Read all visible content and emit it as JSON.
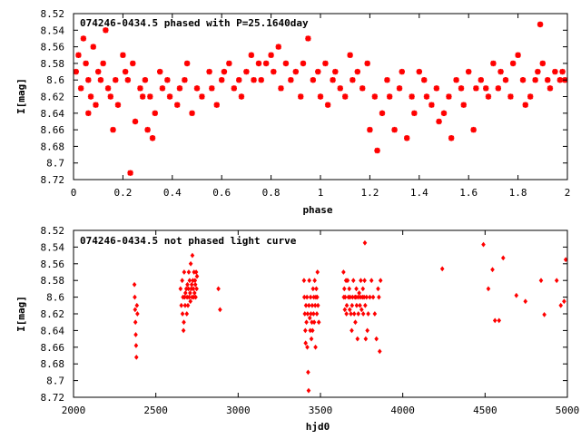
{
  "chart_data": [
    {
      "type": "scatter",
      "title": "074246-0434.5 phased with P=25.1640day",
      "xlabel": "phase",
      "ylabel": "I[mag]",
      "xlim": [
        0,
        2
      ],
      "ylim": [
        8.72,
        8.52
      ],
      "y_inverted": true,
      "marker": "star",
      "color": "#ff0000",
      "xticks": [
        "0",
        "0.2",
        "0.4",
        "0.6",
        "0.8",
        "1",
        "1.2",
        "1.4",
        "1.6",
        "1.8",
        "2"
      ],
      "yticks": [
        "8.52",
        "8.54",
        "8.56",
        "8.58",
        "8.6",
        "8.62",
        "8.64",
        "8.66",
        "8.68",
        "8.7",
        "8.72"
      ],
      "points": [
        [
          0.01,
          8.59
        ],
        [
          0.02,
          8.57
        ],
        [
          0.03,
          8.61
        ],
        [
          0.04,
          8.55
        ],
        [
          0.05,
          8.58
        ],
        [
          0.06,
          8.6
        ],
        [
          0.06,
          8.64
        ],
        [
          0.07,
          8.62
        ],
        [
          0.08,
          8.56
        ],
        [
          0.09,
          8.63
        ],
        [
          0.1,
          8.59
        ],
        [
          0.11,
          8.6
        ],
        [
          0.12,
          8.58
        ],
        [
          0.13,
          8.54
        ],
        [
          0.14,
          8.61
        ],
        [
          0.15,
          8.62
        ],
        [
          0.16,
          8.66
        ],
        [
          0.17,
          8.6
        ],
        [
          0.18,
          8.63
        ],
        [
          0.2,
          8.57
        ],
        [
          0.21,
          8.59
        ],
        [
          0.22,
          8.6
        ],
        [
          0.23,
          8.712
        ],
        [
          0.24,
          8.58
        ],
        [
          0.25,
          8.65
        ],
        [
          0.27,
          8.61
        ],
        [
          0.28,
          8.62
        ],
        [
          0.29,
          8.6
        ],
        [
          0.3,
          8.66
        ],
        [
          0.31,
          8.62
        ],
        [
          0.32,
          8.67
        ],
        [
          0.33,
          8.64
        ],
        [
          0.35,
          8.59
        ],
        [
          0.36,
          8.61
        ],
        [
          0.38,
          8.6
        ],
        [
          0.39,
          8.62
        ],
        [
          0.42,
          8.63
        ],
        [
          0.43,
          8.61
        ],
        [
          0.45,
          8.6
        ],
        [
          0.46,
          8.58
        ],
        [
          0.48,
          8.64
        ],
        [
          0.5,
          8.61
        ],
        [
          0.52,
          8.62
        ],
        [
          0.55,
          8.59
        ],
        [
          0.56,
          8.61
        ],
        [
          0.58,
          8.63
        ],
        [
          0.6,
          8.6
        ],
        [
          0.61,
          8.59
        ],
        [
          0.63,
          8.58
        ],
        [
          0.65,
          8.61
        ],
        [
          0.67,
          8.6
        ],
        [
          0.68,
          8.62
        ],
        [
          0.7,
          8.59
        ],
        [
          0.72,
          8.57
        ],
        [
          0.73,
          8.6
        ],
        [
          0.75,
          8.58
        ],
        [
          0.76,
          8.6
        ],
        [
          0.78,
          8.58
        ],
        [
          0.8,
          8.57
        ],
        [
          0.81,
          8.59
        ],
        [
          0.83,
          8.56
        ],
        [
          0.84,
          8.61
        ],
        [
          0.86,
          8.58
        ],
        [
          0.88,
          8.6
        ],
        [
          0.9,
          8.59
        ],
        [
          0.92,
          8.62
        ],
        [
          0.93,
          8.58
        ],
        [
          0.95,
          8.55
        ],
        [
          0.97,
          8.6
        ],
        [
          0.99,
          8.59
        ],
        [
          1.0,
          8.62
        ],
        [
          1.02,
          8.58
        ],
        [
          1.03,
          8.63
        ],
        [
          1.05,
          8.6
        ],
        [
          1.06,
          8.59
        ],
        [
          1.08,
          8.61
        ],
        [
          1.1,
          8.62
        ],
        [
          1.12,
          8.57
        ],
        [
          1.13,
          8.6
        ],
        [
          1.15,
          8.59
        ],
        [
          1.17,
          8.61
        ],
        [
          1.19,
          8.58
        ],
        [
          1.2,
          8.66
        ],
        [
          1.22,
          8.62
        ],
        [
          1.23,
          8.685
        ],
        [
          1.25,
          8.64
        ],
        [
          1.27,
          8.6
        ],
        [
          1.28,
          8.62
        ],
        [
          1.3,
          8.66
        ],
        [
          1.32,
          8.61
        ],
        [
          1.33,
          8.59
        ],
        [
          1.35,
          8.67
        ],
        [
          1.37,
          8.62
        ],
        [
          1.38,
          8.64
        ],
        [
          1.4,
          8.59
        ],
        [
          1.42,
          8.6
        ],
        [
          1.43,
          8.62
        ],
        [
          1.45,
          8.63
        ],
        [
          1.47,
          8.61
        ],
        [
          1.48,
          8.65
        ],
        [
          1.5,
          8.64
        ],
        [
          1.52,
          8.62
        ],
        [
          1.53,
          8.67
        ],
        [
          1.55,
          8.6
        ],
        [
          1.57,
          8.61
        ],
        [
          1.58,
          8.63
        ],
        [
          1.6,
          8.59
        ],
        [
          1.62,
          8.66
        ],
        [
          1.63,
          8.61
        ],
        [
          1.65,
          8.6
        ],
        [
          1.67,
          8.61
        ],
        [
          1.68,
          8.62
        ],
        [
          1.7,
          8.58
        ],
        [
          1.72,
          8.61
        ],
        [
          1.73,
          8.59
        ],
        [
          1.75,
          8.6
        ],
        [
          1.77,
          8.62
        ],
        [
          1.78,
          8.58
        ],
        [
          1.8,
          8.57
        ],
        [
          1.82,
          8.6
        ],
        [
          1.83,
          8.63
        ],
        [
          1.85,
          8.62
        ],
        [
          1.87,
          8.6
        ],
        [
          1.88,
          8.59
        ],
        [
          1.89,
          8.533
        ],
        [
          1.9,
          8.58
        ],
        [
          1.92,
          8.6
        ],
        [
          1.93,
          8.61
        ],
        [
          1.95,
          8.59
        ],
        [
          1.97,
          8.6
        ],
        [
          1.98,
          8.59
        ],
        [
          1.99,
          8.6
        ]
      ]
    },
    {
      "type": "scatter",
      "title": "074246-0434.5 not phased light curve",
      "xlabel": "hjd0",
      "ylabel": "I[mag]",
      "xlim": [
        2000,
        5000
      ],
      "ylim": [
        8.72,
        8.52
      ],
      "y_inverted": true,
      "marker": "diamond",
      "color": "#ff0000",
      "xticks": [
        "2000",
        "2500",
        "3000",
        "3500",
        "4000",
        "4500",
        "5000"
      ],
      "yticks": [
        "8.52",
        "8.54",
        "8.56",
        "8.58",
        "8.6",
        "8.62",
        "8.64",
        "8.66",
        "8.68",
        "8.7",
        "8.72"
      ],
      "points": [
        [
          2370,
          8.585
        ],
        [
          2372,
          8.6
        ],
        [
          2374,
          8.615
        ],
        [
          2376,
          8.63
        ],
        [
          2378,
          8.645
        ],
        [
          2380,
          8.658
        ],
        [
          2382,
          8.672
        ],
        [
          2385,
          8.61
        ],
        [
          2388,
          8.62
        ],
        [
          2650,
          8.59
        ],
        [
          2655,
          8.61
        ],
        [
          2660,
          8.58
        ],
        [
          2662,
          8.62
        ],
        [
          2665,
          8.6
        ],
        [
          2668,
          8.64
        ],
        [
          2670,
          8.63
        ],
        [
          2672,
          8.57
        ],
        [
          2675,
          8.6
        ],
        [
          2678,
          8.61
        ],
        [
          2680,
          8.595
        ],
        [
          2685,
          8.59
        ],
        [
          2688,
          8.62
        ],
        [
          2690,
          8.6
        ],
        [
          2692,
          8.585
        ],
        [
          2695,
          8.61
        ],
        [
          2698,
          8.59
        ],
        [
          2700,
          8.57
        ],
        [
          2702,
          8.6
        ],
        [
          2705,
          8.58
        ],
        [
          2708,
          8.595
        ],
        [
          2710,
          8.605
        ],
        [
          2712,
          8.56
        ],
        [
          2715,
          8.59
        ],
        [
          2718,
          8.585
        ],
        [
          2720,
          8.6
        ],
        [
          2722,
          8.55
        ],
        [
          2725,
          8.58
        ],
        [
          2728,
          8.59
        ],
        [
          2730,
          8.6
        ],
        [
          2732,
          8.57
        ],
        [
          2735,
          8.595
        ],
        [
          2738,
          8.58
        ],
        [
          2740,
          8.585
        ],
        [
          2742,
          8.6
        ],
        [
          2745,
          8.57
        ],
        [
          2748,
          8.59
        ],
        [
          2750,
          8.575
        ],
        [
          2880,
          8.59
        ],
        [
          2890,
          8.615
        ],
        [
          3400,
          8.58
        ],
        [
          3402,
          8.6
        ],
        [
          3405,
          8.62
        ],
        [
          3408,
          8.64
        ],
        [
          3410,
          8.655
        ],
        [
          3412,
          8.61
        ],
        [
          3415,
          8.63
        ],
        [
          3418,
          8.6
        ],
        [
          3420,
          8.66
        ],
        [
          3422,
          8.62
        ],
        [
          3425,
          8.69
        ],
        [
          3428,
          8.712
        ],
        [
          3430,
          8.61
        ],
        [
          3432,
          8.58
        ],
        [
          3435,
          8.625
        ],
        [
          3438,
          8.64
        ],
        [
          3440,
          8.6
        ],
        [
          3442,
          8.62
        ],
        [
          3445,
          8.65
        ],
        [
          3448,
          8.63
        ],
        [
          3450,
          8.61
        ],
        [
          3452,
          8.64
        ],
        [
          3455,
          8.59
        ],
        [
          3458,
          8.62
        ],
        [
          3460,
          8.6
        ],
        [
          3462,
          8.63
        ],
        [
          3465,
          8.58
        ],
        [
          3468,
          8.61
        ],
        [
          3470,
          8.66
        ],
        [
          3472,
          8.6
        ],
        [
          3475,
          8.59
        ],
        [
          3478,
          8.62
        ],
        [
          3480,
          8.6
        ],
        [
          3482,
          8.57
        ],
        [
          3485,
          8.61
        ],
        [
          3490,
          8.63
        ],
        [
          3640,
          8.57
        ],
        [
          3642,
          8.6
        ],
        [
          3645,
          8.59
        ],
        [
          3648,
          8.615
        ],
        [
          3650,
          8.6
        ],
        [
          3655,
          8.58
        ],
        [
          3658,
          8.62
        ],
        [
          3660,
          8.61
        ],
        [
          3665,
          8.58
        ],
        [
          3670,
          8.6
        ],
        [
          3675,
          8.59
        ],
        [
          3678,
          8.615
        ],
        [
          3680,
          8.6
        ],
        [
          3685,
          8.62
        ],
        [
          3690,
          8.64
        ],
        [
          3692,
          8.61
        ],
        [
          3695,
          8.6
        ],
        [
          3700,
          8.58
        ],
        [
          3705,
          8.62
        ],
        [
          3710,
          8.6
        ],
        [
          3712,
          8.63
        ],
        [
          3715,
          8.6
        ],
        [
          3718,
          8.59
        ],
        [
          3720,
          8.61
        ],
        [
          3725,
          8.65
        ],
        [
          3728,
          8.6
        ],
        [
          3730,
          8.62
        ],
        [
          3735,
          8.595
        ],
        [
          3740,
          8.61
        ],
        [
          3742,
          8.6
        ],
        [
          3745,
          8.58
        ],
        [
          3750,
          8.615
        ],
        [
          3755,
          8.6
        ],
        [
          3758,
          8.59
        ],
        [
          3760,
          8.62
        ],
        [
          3765,
          8.6
        ],
        [
          3768,
          8.58
        ],
        [
          3770,
          8.535
        ],
        [
          3772,
          8.61
        ],
        [
          3775,
          8.65
        ],
        [
          3780,
          8.6
        ],
        [
          3785,
          8.64
        ],
        [
          3790,
          8.62
        ],
        [
          3800,
          8.6
        ],
        [
          3810,
          8.58
        ],
        [
          3820,
          8.6
        ],
        [
          3830,
          8.62
        ],
        [
          3840,
          8.65
        ],
        [
          3850,
          8.59
        ],
        [
          3855,
          8.6
        ],
        [
          3860,
          8.665
        ],
        [
          3865,
          8.58
        ],
        [
          4240,
          8.566
        ],
        [
          4490,
          8.537
        ],
        [
          4520,
          8.59
        ],
        [
          4545,
          8.567
        ],
        [
          4560,
          8.628
        ],
        [
          4585,
          8.628
        ],
        [
          4610,
          8.553
        ],
        [
          4690,
          8.598
        ],
        [
          4745,
          8.605
        ],
        [
          4840,
          8.58
        ],
        [
          4860,
          8.621
        ],
        [
          4935,
          8.58
        ],
        [
          4960,
          8.61
        ],
        [
          4980,
          8.605
        ],
        [
          4990,
          8.555
        ]
      ]
    }
  ]
}
